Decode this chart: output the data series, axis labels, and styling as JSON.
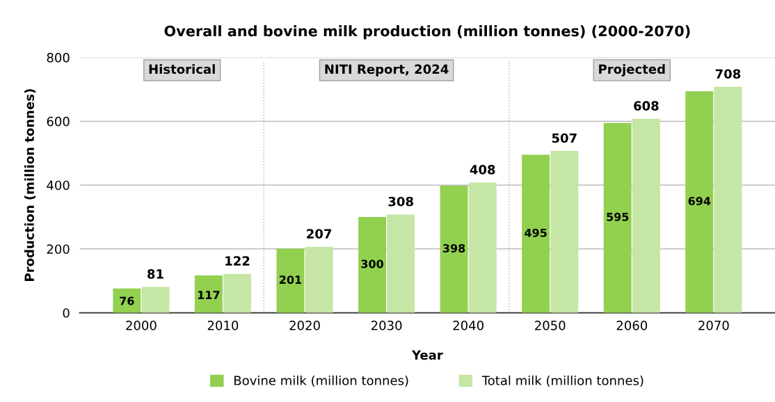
{
  "chart_data": {
    "type": "bar",
    "title": "Overall and bovine milk production (million tonnes) (2000-2070)",
    "xlabel": "Year",
    "ylabel": "Production (million tonnes)",
    "categories": [
      "2000",
      "2010",
      "2020",
      "2030",
      "2040",
      "2050",
      "2060",
      "2070"
    ],
    "series": [
      {
        "name": "Bovine milk (million tonnes)",
        "color": "#92d050",
        "values": [
          76,
          117,
          201,
          300,
          398,
          495,
          595,
          694
        ]
      },
      {
        "name": "Total milk (million tonnes)",
        "color": "#c6e6a5",
        "values": [
          81,
          122,
          207,
          308,
          408,
          507,
          608,
          708
        ]
      }
    ],
    "ylim": [
      0,
      800
    ],
    "yticks": [
      0,
      200,
      400,
      600,
      800
    ],
    "grid": "y",
    "legend": "bottom",
    "data_labels": true,
    "bands": [
      {
        "axis": "x",
        "from": "2000",
        "to": "2010",
        "label": "Historical",
        "color": "#d9d9d9"
      },
      {
        "axis": "x",
        "from": "2020",
        "to": "2040",
        "label": "NITI Report, 2024",
        "color": "#d9d9d9"
      },
      {
        "axis": "x",
        "from": "2050",
        "to": "2070",
        "label": "Projected",
        "color": "#d9d9d9"
      }
    ]
  }
}
